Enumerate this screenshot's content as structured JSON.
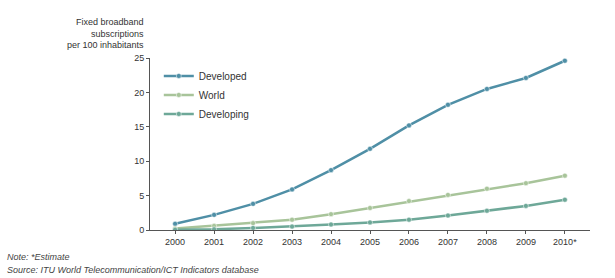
{
  "chart_data": {
    "type": "line",
    "y_label": [
      "Fixed broadband",
      "subscriptions",
      "per 100 inhabitants"
    ],
    "categories": [
      "2000",
      "2001",
      "2002",
      "2003",
      "2004",
      "2005",
      "2006",
      "2007",
      "2008",
      "2009",
      "2010*"
    ],
    "series": [
      {
        "name": "Developed",
        "color": "#4f8fa6",
        "values": [
          0.9,
          2.2,
          3.8,
          5.9,
          8.7,
          11.8,
          15.2,
          18.2,
          20.5,
          22.1,
          24.6
        ]
      },
      {
        "name": "World",
        "color": "#a8c49a",
        "values": [
          0.2,
          0.6,
          1.0,
          1.5,
          2.3,
          3.2,
          4.2,
          5.1,
          6.0,
          6.8,
          7.9
        ]
      },
      {
        "name": "Developing",
        "color": "#6ea898",
        "values": [
          0.05,
          0.1,
          0.3,
          0.5,
          0.8,
          1.1,
          1.5,
          2.1,
          2.8,
          3.5,
          4.4
        ]
      }
    ],
    "ylim": [
      0,
      25
    ],
    "yticks": [
      0,
      5,
      10,
      15,
      20,
      25
    ],
    "grid": false,
    "legend": "top-left",
    "marker": "circle",
    "line_style": "solid",
    "notes": [
      "Note: *Estimate",
      "Source: ITU World Telecommunication/ICT Indicators database"
    ]
  }
}
